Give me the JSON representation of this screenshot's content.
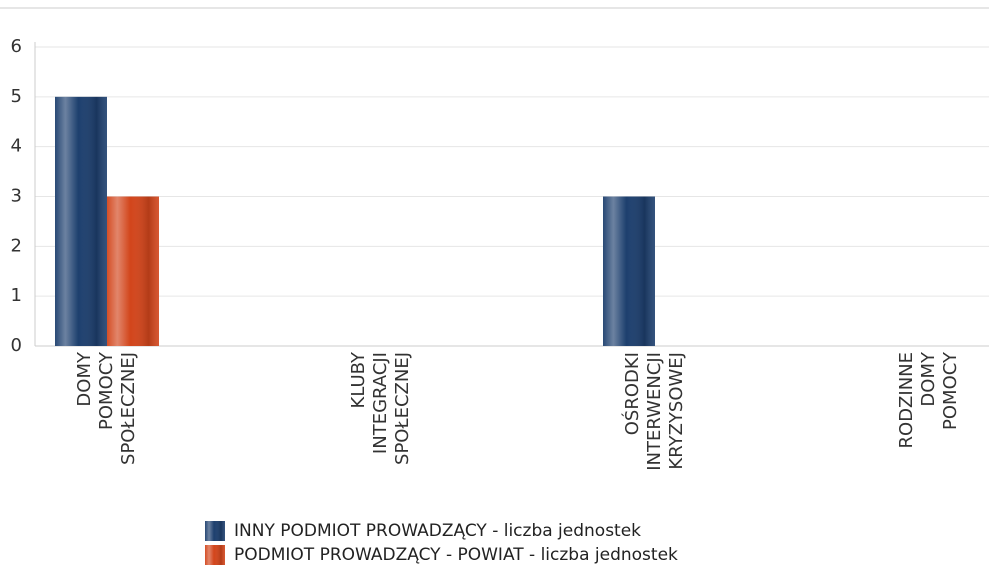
{
  "chart_data": {
    "type": "bar",
    "categories": [
      [
        "DOMY",
        "POMOCY",
        "SPOŁECZNEJ"
      ],
      [
        "KLUBY",
        "INTEGRACJI",
        "SPOŁECZNEJ"
      ],
      [
        "OŚRODKI",
        "INTERWENCJI",
        "KRYZYSOWEJ"
      ],
      [
        "RODZINNE",
        "DOMY",
        "POMOCY"
      ]
    ],
    "series": [
      {
        "name": "INNY PODMIOT PROWADZĄCY - liczba jednostek",
        "color": "#1d3f6e",
        "values": [
          5,
          null,
          3,
          null
        ]
      },
      {
        "name": "PODMIOT PROWADZĄCY - POWIAT - liczba jednostek",
        "color": "#d2451b",
        "values": [
          3,
          null,
          null,
          null
        ]
      }
    ],
    "ylim": [
      0,
      6
    ],
    "yticks": [
      0,
      1,
      2,
      3,
      4,
      5,
      6
    ],
    "grid": true
  }
}
